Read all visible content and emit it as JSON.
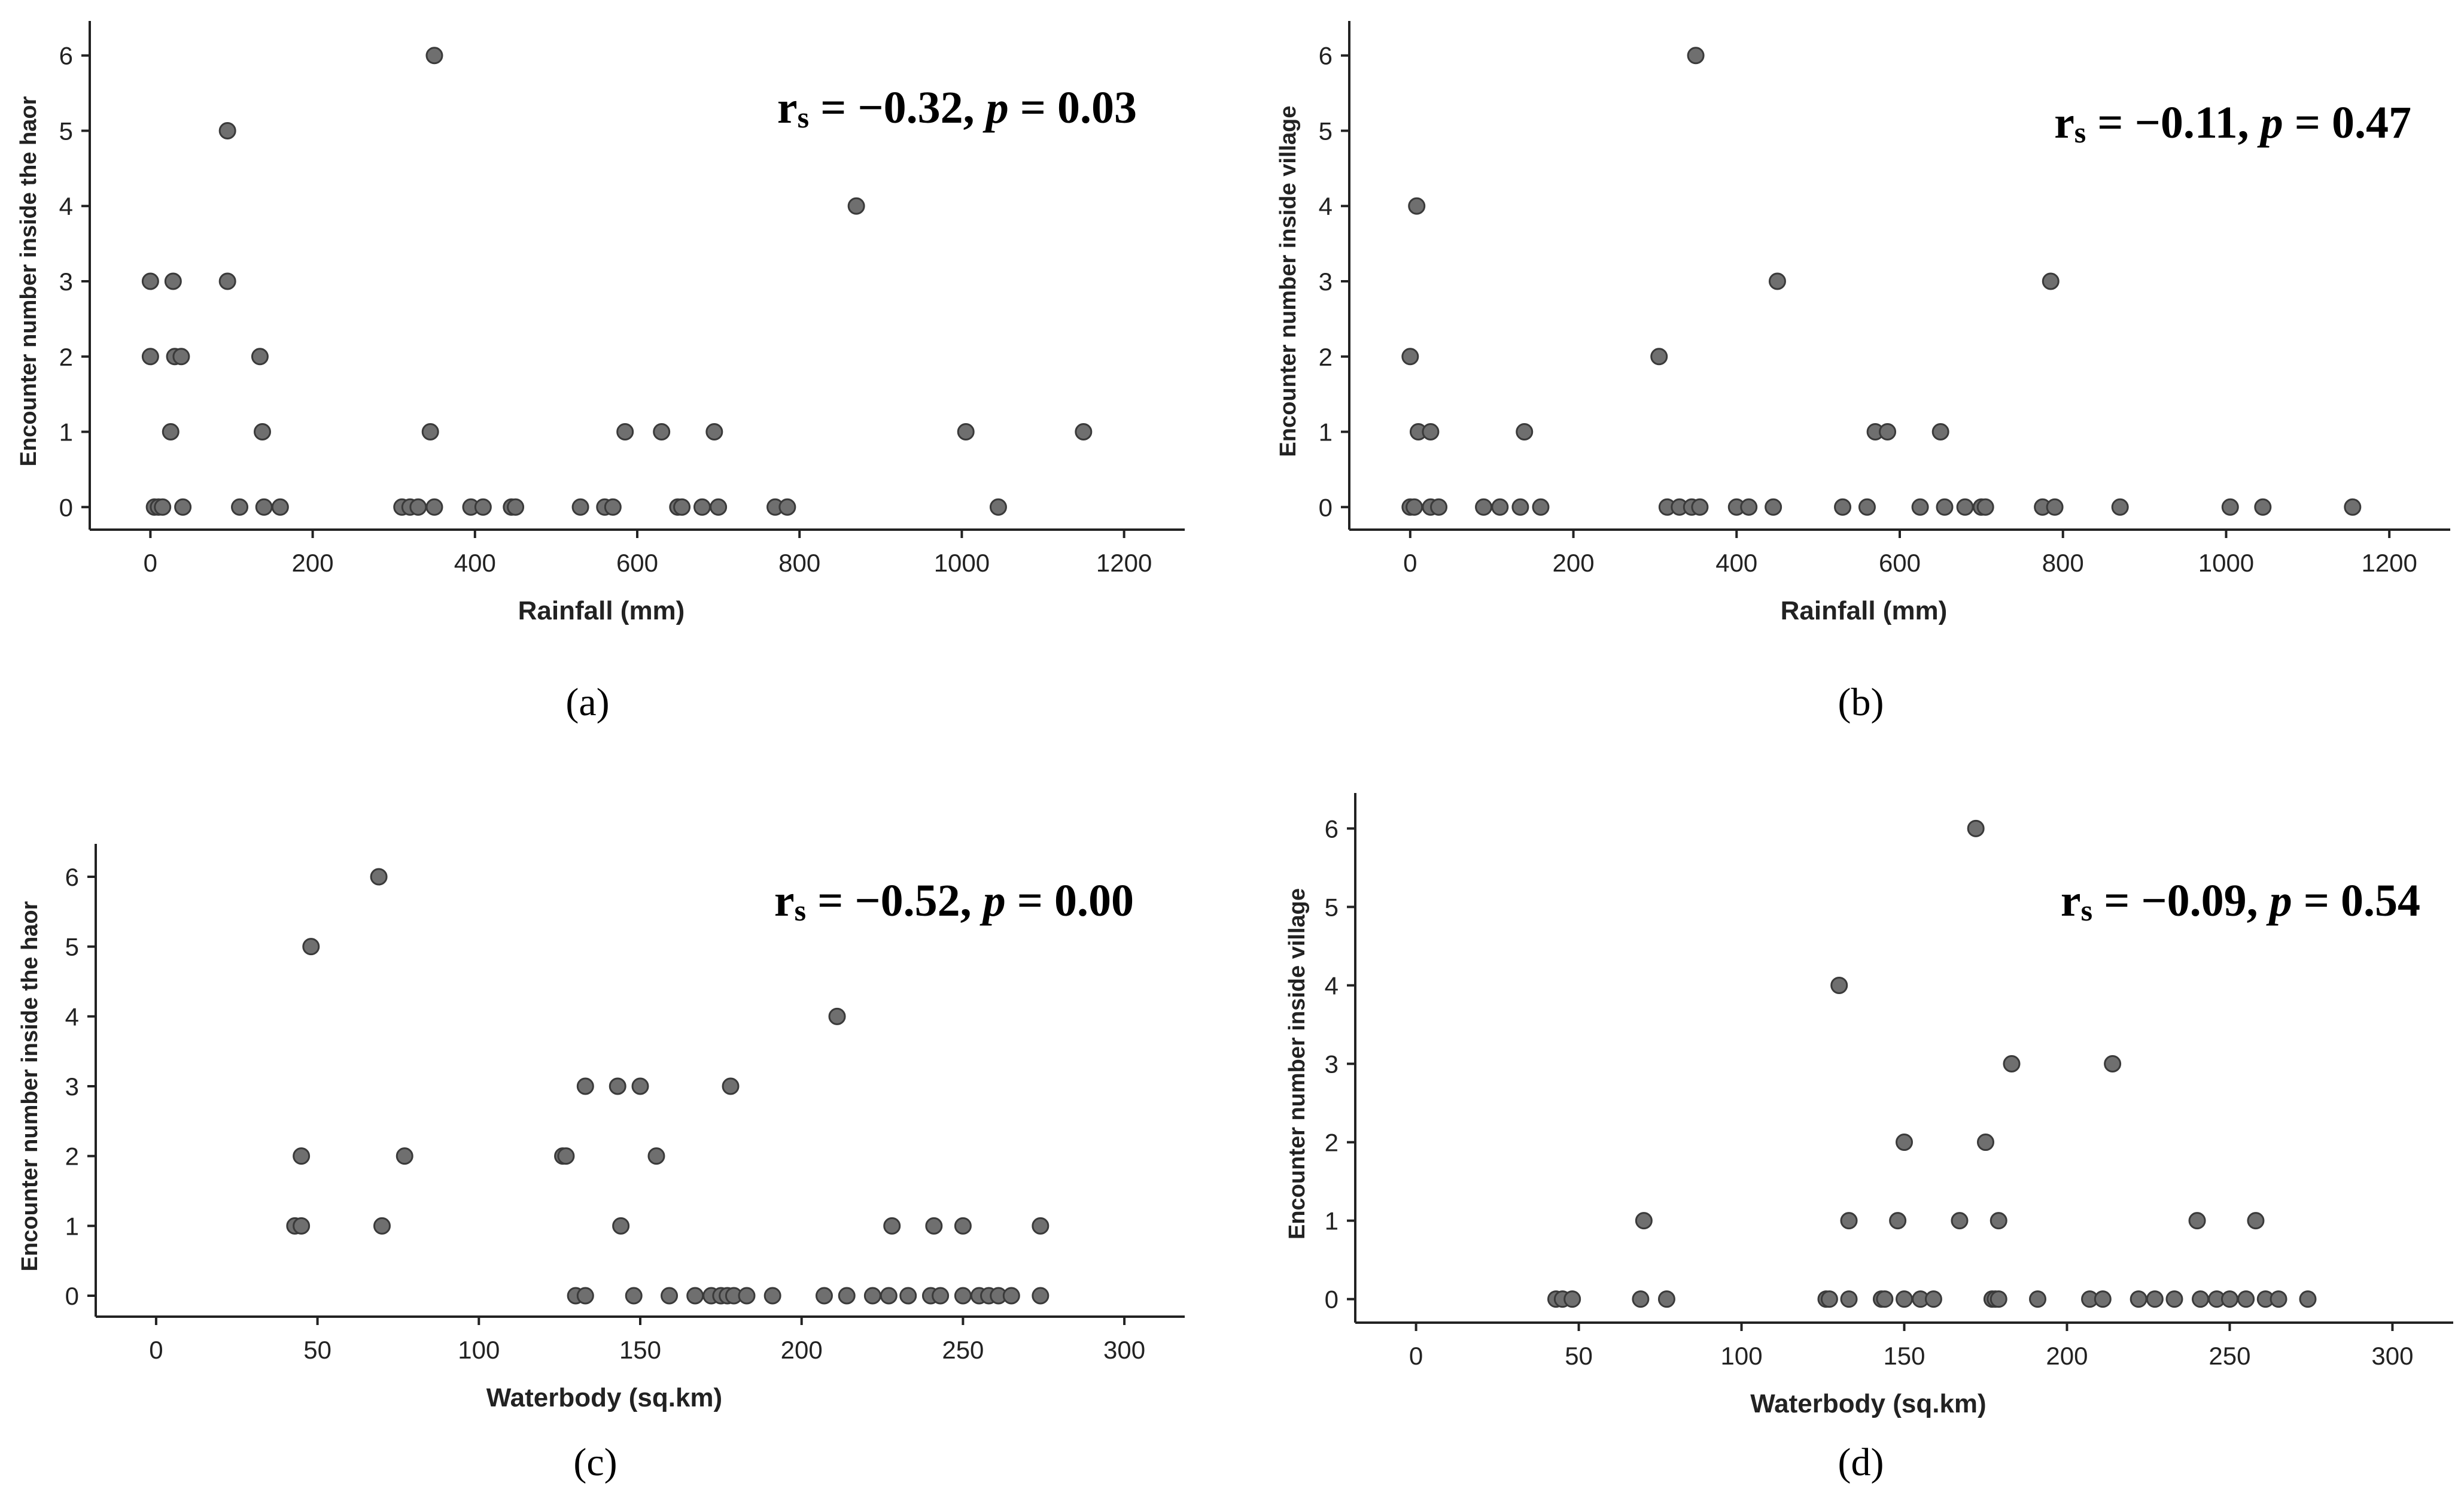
{
  "chart_data": [
    {
      "type": "scatter",
      "panel": "(a)",
      "xlabel": "Rainfall (mm)",
      "ylabel": "Encounter number inside the haor",
      "xlim": [
        -60,
        1260
      ],
      "ylim": [
        -0.3,
        6.3
      ],
      "xticks": [
        0,
        200,
        400,
        600,
        800,
        1000,
        1200
      ],
      "yticks": [
        0,
        1,
        2,
        3,
        4,
        5,
        6
      ],
      "annotation": {
        "r": "r",
        "sub": "s",
        "rest": " = −0.32, ",
        "p": "p",
        "pval": " = 0.03"
      },
      "points": [
        {
          "x": 0,
          "y": 3
        },
        {
          "x": 0,
          "y": 2
        },
        {
          "x": 5,
          "y": 0
        },
        {
          "x": 10,
          "y": 0
        },
        {
          "x": 15,
          "y": 0
        },
        {
          "x": 25,
          "y": 1
        },
        {
          "x": 28,
          "y": 3
        },
        {
          "x": 30,
          "y": 2
        },
        {
          "x": 38,
          "y": 2
        },
        {
          "x": 40,
          "y": 0
        },
        {
          "x": 95,
          "y": 5
        },
        {
          "x": 95,
          "y": 3
        },
        {
          "x": 110,
          "y": 0
        },
        {
          "x": 135,
          "y": 2
        },
        {
          "x": 138,
          "y": 1
        },
        {
          "x": 140,
          "y": 0
        },
        {
          "x": 160,
          "y": 0
        },
        {
          "x": 310,
          "y": 0
        },
        {
          "x": 320,
          "y": 0
        },
        {
          "x": 330,
          "y": 0
        },
        {
          "x": 345,
          "y": 1
        },
        {
          "x": 350,
          "y": 6
        },
        {
          "x": 350,
          "y": 0
        },
        {
          "x": 395,
          "y": 0
        },
        {
          "x": 410,
          "y": 0
        },
        {
          "x": 445,
          "y": 0
        },
        {
          "x": 450,
          "y": 0
        },
        {
          "x": 530,
          "y": 0
        },
        {
          "x": 560,
          "y": 0
        },
        {
          "x": 570,
          "y": 0
        },
        {
          "x": 585,
          "y": 1
        },
        {
          "x": 630,
          "y": 1
        },
        {
          "x": 650,
          "y": 0
        },
        {
          "x": 655,
          "y": 0
        },
        {
          "x": 680,
          "y": 0
        },
        {
          "x": 695,
          "y": 1
        },
        {
          "x": 700,
          "y": 0
        },
        {
          "x": 770,
          "y": 0
        },
        {
          "x": 785,
          "y": 0
        },
        {
          "x": 870,
          "y": 4
        },
        {
          "x": 1005,
          "y": 1
        },
        {
          "x": 1045,
          "y": 0
        },
        {
          "x": 1150,
          "y": 1
        }
      ]
    },
    {
      "type": "scatter",
      "panel": "(b)",
      "xlabel": "Rainfall (mm)",
      "ylabel": "Encounter number inside village",
      "xlim": [
        -60,
        1260
      ],
      "ylim": [
        -0.3,
        6.3
      ],
      "xticks": [
        0,
        200,
        400,
        600,
        800,
        1000,
        1200
      ],
      "yticks": [
        0,
        1,
        2,
        3,
        4,
        5,
        6
      ],
      "annotation": {
        "r": "r",
        "sub": "s",
        "rest": " = −0.11, ",
        "p": "p",
        "pval": " = 0.47"
      },
      "points": [
        {
          "x": 0,
          "y": 2
        },
        {
          "x": 0,
          "y": 0
        },
        {
          "x": 5,
          "y": 0
        },
        {
          "x": 8,
          "y": 4
        },
        {
          "x": 10,
          "y": 1
        },
        {
          "x": 25,
          "y": 1
        },
        {
          "x": 25,
          "y": 0
        },
        {
          "x": 35,
          "y": 0
        },
        {
          "x": 90,
          "y": 0
        },
        {
          "x": 110,
          "y": 0
        },
        {
          "x": 135,
          "y": 0
        },
        {
          "x": 140,
          "y": 1
        },
        {
          "x": 160,
          "y": 0
        },
        {
          "x": 305,
          "y": 2
        },
        {
          "x": 315,
          "y": 0
        },
        {
          "x": 330,
          "y": 0
        },
        {
          "x": 345,
          "y": 0
        },
        {
          "x": 350,
          "y": 6
        },
        {
          "x": 355,
          "y": 0
        },
        {
          "x": 400,
          "y": 0
        },
        {
          "x": 415,
          "y": 0
        },
        {
          "x": 445,
          "y": 0
        },
        {
          "x": 450,
          "y": 3
        },
        {
          "x": 530,
          "y": 0
        },
        {
          "x": 560,
          "y": 0
        },
        {
          "x": 570,
          "y": 1
        },
        {
          "x": 585,
          "y": 1
        },
        {
          "x": 625,
          "y": 0
        },
        {
          "x": 650,
          "y": 1
        },
        {
          "x": 655,
          "y": 0
        },
        {
          "x": 680,
          "y": 0
        },
        {
          "x": 700,
          "y": 0
        },
        {
          "x": 705,
          "y": 0
        },
        {
          "x": 775,
          "y": 0
        },
        {
          "x": 785,
          "y": 3
        },
        {
          "x": 790,
          "y": 0
        },
        {
          "x": 870,
          "y": 0
        },
        {
          "x": 1005,
          "y": 0
        },
        {
          "x": 1045,
          "y": 0
        },
        {
          "x": 1155,
          "y": 0
        }
      ]
    },
    {
      "type": "scatter",
      "panel": "(c)",
      "xlabel": "Waterbody (sq.km)",
      "ylabel": "Encounter number inside the haor",
      "xlim": [
        -15,
        315
      ],
      "ylim": [
        -0.3,
        6.3
      ],
      "xticks": [
        0,
        50,
        100,
        150,
        200,
        250,
        300
      ],
      "yticks": [
        0,
        1,
        2,
        3,
        4,
        5,
        6
      ],
      "annotation": {
        "r": "r",
        "sub": "s",
        "rest": " = −0.52, ",
        "p": "p",
        "pval": " = 0.00"
      },
      "points": [
        {
          "x": 43,
          "y": 1
        },
        {
          "x": 45,
          "y": 1
        },
        {
          "x": 45,
          "y": 2
        },
        {
          "x": 48,
          "y": 5
        },
        {
          "x": 69,
          "y": 6
        },
        {
          "x": 70,
          "y": 1
        },
        {
          "x": 77,
          "y": 2
        },
        {
          "x": 126,
          "y": 2
        },
        {
          "x": 127,
          "y": 2
        },
        {
          "x": 130,
          "y": 0
        },
        {
          "x": 133,
          "y": 0
        },
        {
          "x": 133,
          "y": 3
        },
        {
          "x": 143,
          "y": 3
        },
        {
          "x": 144,
          "y": 1
        },
        {
          "x": 148,
          "y": 0
        },
        {
          "x": 150,
          "y": 3
        },
        {
          "x": 155,
          "y": 2
        },
        {
          "x": 159,
          "y": 0
        },
        {
          "x": 167,
          "y": 0
        },
        {
          "x": 172,
          "y": 0
        },
        {
          "x": 175,
          "y": 0
        },
        {
          "x": 177,
          "y": 0
        },
        {
          "x": 178,
          "y": 3
        },
        {
          "x": 179,
          "y": 0
        },
        {
          "x": 183,
          "y": 0
        },
        {
          "x": 191,
          "y": 0
        },
        {
          "x": 207,
          "y": 0
        },
        {
          "x": 211,
          "y": 4
        },
        {
          "x": 214,
          "y": 0
        },
        {
          "x": 222,
          "y": 0
        },
        {
          "x": 227,
          "y": 0
        },
        {
          "x": 228,
          "y": 1
        },
        {
          "x": 233,
          "y": 0
        },
        {
          "x": 240,
          "y": 0
        },
        {
          "x": 241,
          "y": 1
        },
        {
          "x": 243,
          "y": 0
        },
        {
          "x": 250,
          "y": 0
        },
        {
          "x": 250,
          "y": 1
        },
        {
          "x": 255,
          "y": 0
        },
        {
          "x": 258,
          "y": 0
        },
        {
          "x": 261,
          "y": 0
        },
        {
          "x": 265,
          "y": 0
        },
        {
          "x": 274,
          "y": 1
        },
        {
          "x": 274,
          "y": 0
        }
      ]
    },
    {
      "type": "scatter",
      "panel": "(d)",
      "xlabel": "Waterbody (sq.km)",
      "ylabel": "Encounter number inside village",
      "xlim": [
        -15,
        315
      ],
      "ylim": [
        -0.3,
        6.3
      ],
      "xticks": [
        0,
        50,
        100,
        150,
        200,
        250,
        300
      ],
      "yticks": [
        0,
        1,
        2,
        3,
        4,
        5,
        6
      ],
      "annotation": {
        "r": "r",
        "sub": "s",
        "rest": " = −0.09, ",
        "p": "p",
        "pval": " = 0.54"
      },
      "points": [
        {
          "x": 43,
          "y": 0
        },
        {
          "x": 45,
          "y": 0
        },
        {
          "x": 48,
          "y": 0
        },
        {
          "x": 69,
          "y": 0
        },
        {
          "x": 70,
          "y": 1
        },
        {
          "x": 77,
          "y": 0
        },
        {
          "x": 126,
          "y": 0
        },
        {
          "x": 127,
          "y": 0
        },
        {
          "x": 130,
          "y": 4
        },
        {
          "x": 133,
          "y": 1
        },
        {
          "x": 133,
          "y": 0
        },
        {
          "x": 143,
          "y": 0
        },
        {
          "x": 144,
          "y": 0
        },
        {
          "x": 148,
          "y": 1
        },
        {
          "x": 150,
          "y": 2
        },
        {
          "x": 150,
          "y": 0
        },
        {
          "x": 155,
          "y": 0
        },
        {
          "x": 159,
          "y": 0
        },
        {
          "x": 167,
          "y": 1
        },
        {
          "x": 172,
          "y": 6
        },
        {
          "x": 175,
          "y": 2
        },
        {
          "x": 177,
          "y": 0
        },
        {
          "x": 178,
          "y": 0
        },
        {
          "x": 179,
          "y": 1
        },
        {
          "x": 179,
          "y": 0
        },
        {
          "x": 183,
          "y": 3
        },
        {
          "x": 191,
          "y": 0
        },
        {
          "x": 207,
          "y": 0
        },
        {
          "x": 211,
          "y": 0
        },
        {
          "x": 214,
          "y": 3
        },
        {
          "x": 222,
          "y": 0
        },
        {
          "x": 227,
          "y": 0
        },
        {
          "x": 233,
          "y": 0
        },
        {
          "x": 240,
          "y": 1
        },
        {
          "x": 241,
          "y": 0
        },
        {
          "x": 246,
          "y": 0
        },
        {
          "x": 250,
          "y": 0
        },
        {
          "x": 255,
          "y": 0
        },
        {
          "x": 258,
          "y": 1
        },
        {
          "x": 261,
          "y": 0
        },
        {
          "x": 265,
          "y": 0
        },
        {
          "x": 274,
          "y": 0
        }
      ]
    }
  ]
}
